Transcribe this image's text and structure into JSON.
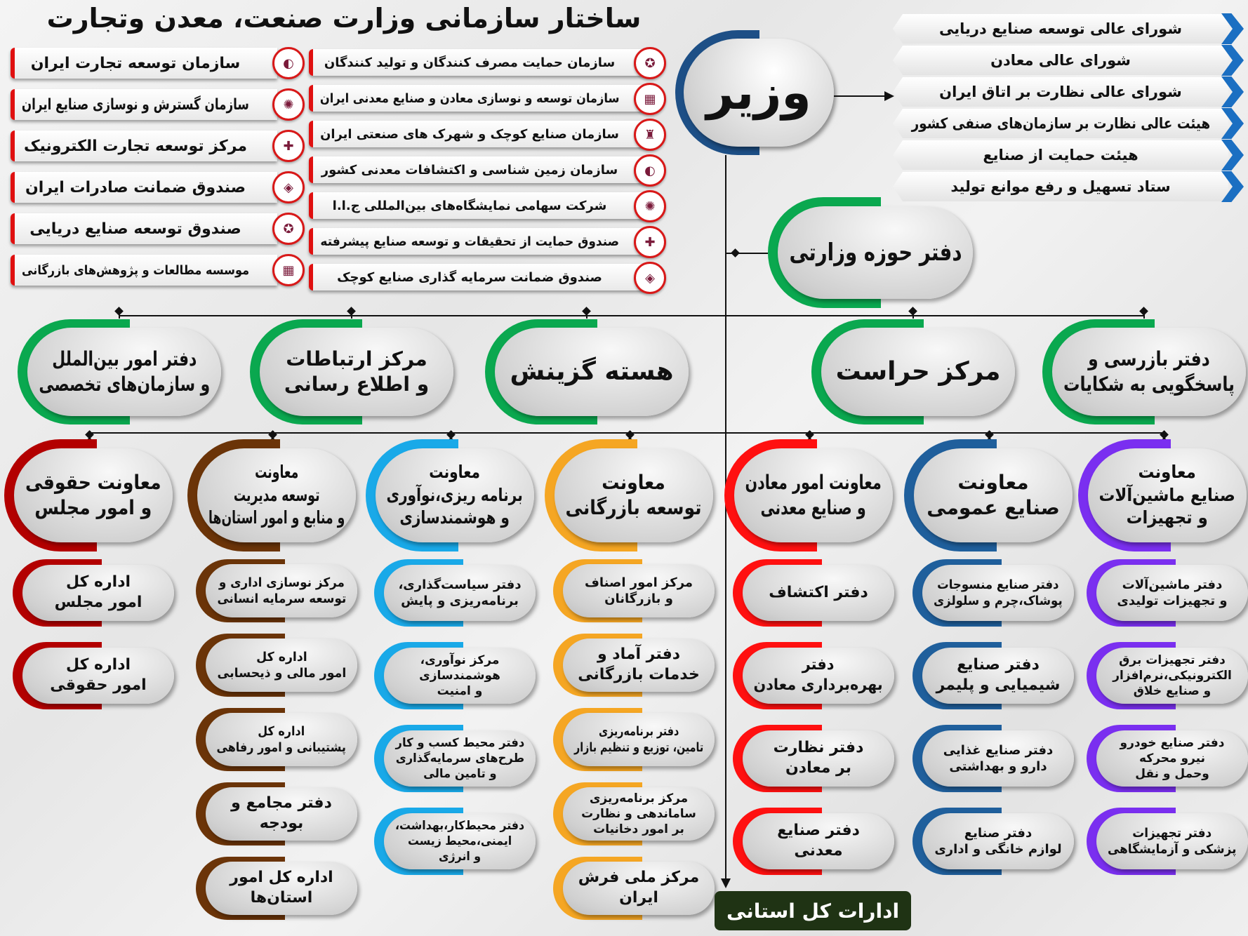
{
  "title": "ساختار سازمانی وزارت صنعت، معدن وتجارت",
  "minister": "وزیر",
  "councils": [
    "شورای عالی توسعه صنایع دریایی",
    "شورای عالی معادن",
    "شورای عالی نظارت بر اتاق ایران",
    "هیئت عالی نظارت بر سازمان‌های صنفی کشور",
    "هیئت حمایت از صنایع",
    "ستاد تسهیل و رفع موانع تولید"
  ],
  "organizations_right": [
    "سازمان حمایت مصرف کنندگان و تولید کنندگان",
    "سازمان توسعه و نوسازی معادن و صنایع معدنی ایران",
    "سازمان صنایع کوچک و شهرک های صنعتی ایران",
    "سازمان زمین شناسی و اکتشافات معدنی کشور",
    "شرکت سهامی نمایشگاه‌های بین‌المللی ج.ا.ا",
    "صندوق حمایت از تحقیقات و توسعه صنایع پیشرفته",
    "صندوق ضمانت سرمایه گذاری صنایع کوچک"
  ],
  "organizations_left": [
    "سازمان توسعه تجارت ایران",
    "سازمان گسترش و نوسازی صنایع ایران",
    "مرکز توسعه تجارت الکترونیک",
    "صندوق ضمانت صادرات ایران",
    "صندوق توسعه صنایع دریایی",
    "موسسه مطالعات و پژوهش‌های بازرگانی"
  ],
  "minister_office": "دفتر حوزه وزارتی",
  "minister_office_color": "#0aa84f",
  "staff_units": [
    "دفتر امور بین‌الملل\nو سازمان‌های تخصصی",
    "مرکز ارتباطات\nو اطلاع رسانی",
    "هسته گزینش",
    "مرکز حراست",
    "دفتر بازرسی و\nپاسخگویی به شکایات"
  ],
  "deputies": [
    {
      "title": "معاونت حقوقی\nو امور مجلس",
      "color": "#b30000",
      "units": [
        "اداره کل\nامور مجلس",
        "اداره کل\nامور حقوقی"
      ]
    },
    {
      "title": "معاونت\nتوسعه مدیریت\nو منابع و امور استان‌ها",
      "color": "#6b3408",
      "units": [
        "مرکز نوسازی اداری و\nتوسعه سرمایه انسانی",
        "اداره کل\nامور مالی و ذیحسابی",
        "اداره کل\nپشتیبانی و امور رفاهی",
        "دفتر مجامع و\nبودجه",
        "اداره کل امور\nاستان‌ها"
      ]
    },
    {
      "title": "معاونت\nبرنامه ریزی،نوآوری\nو هوشمندسازی",
      "color": "#19a9e8",
      "units": [
        "دفتر سیاست‌گذاری،\nبرنامه‌ریزی و پایش",
        "مرکز نوآوری،\nهوشمندسازی\nو امنیت",
        "دفتر محیط کسب و کار\nطرح‌های سرمایه‌گذاری\nو تامین مالی",
        "دفتر محیط‌کار،بهداشت،\nایمنی،محیط زیست\nو انرژی"
      ]
    },
    {
      "title": "معاونت\nتوسعه بازرگانی",
      "color": "#f5a623",
      "units": [
        "مرکز امور اصناف\nو بازرگانان",
        "دفتر آماد و\nخدمات بازرگانی",
        "دفتر برنامه‌ریزی\nتامین، توزیع و تنظیم بازار",
        "مرکز برنامه‌ریزی\nساماندهی و نظارت\nبر امور دخانیات",
        "مرکز ملی فرش\nایران"
      ]
    },
    {
      "title": "معاونت امور معادن\nو صنایع معدنی",
      "color": "#ff1010",
      "units": [
        "دفتر اکتشاف",
        "دفتر\nبهره‌برداری معادن",
        "دفتر نظارت\nبر معادن",
        "دفتر صنایع\nمعدنی"
      ]
    },
    {
      "title": "معاونت\nصنایع عمومی",
      "color": "#1f5f9c",
      "units": [
        "دفتر صنایع منسوجات\nپوشاک،چرم و سلولزی",
        "دفتر صنایع\nشیمیایی و پلیمر",
        "دفتر صنایع غذایی\nدارو و بهداشتی",
        "دفتر صنایع\nلوازم خانگی و اداری"
      ]
    },
    {
      "title": "معاونت\nصنایع ماشین‌آلات\nو تجهیزات",
      "color": "#7a2ff0",
      "units": [
        "دفتر ماشین‌آلات\nو تجهیزات تولیدی",
        "دفتر تجهیزات برق\nالکترونیکی،نرم‌افزار\nو صنایع خلاق",
        "دفتر صنایع خودرو\nنیرو محرکه\nوحمل و نقل",
        "دفتر تجهیزات\nپزشکی و آزمایشگاهی"
      ]
    }
  ],
  "provincial": "ادارات کل استانی",
  "colors": {
    "minister_bracket": "#1d4f86",
    "council_chevron": "#1b6fc2",
    "org_accent": "#e01010",
    "provincial_bg": "#1f3314"
  }
}
